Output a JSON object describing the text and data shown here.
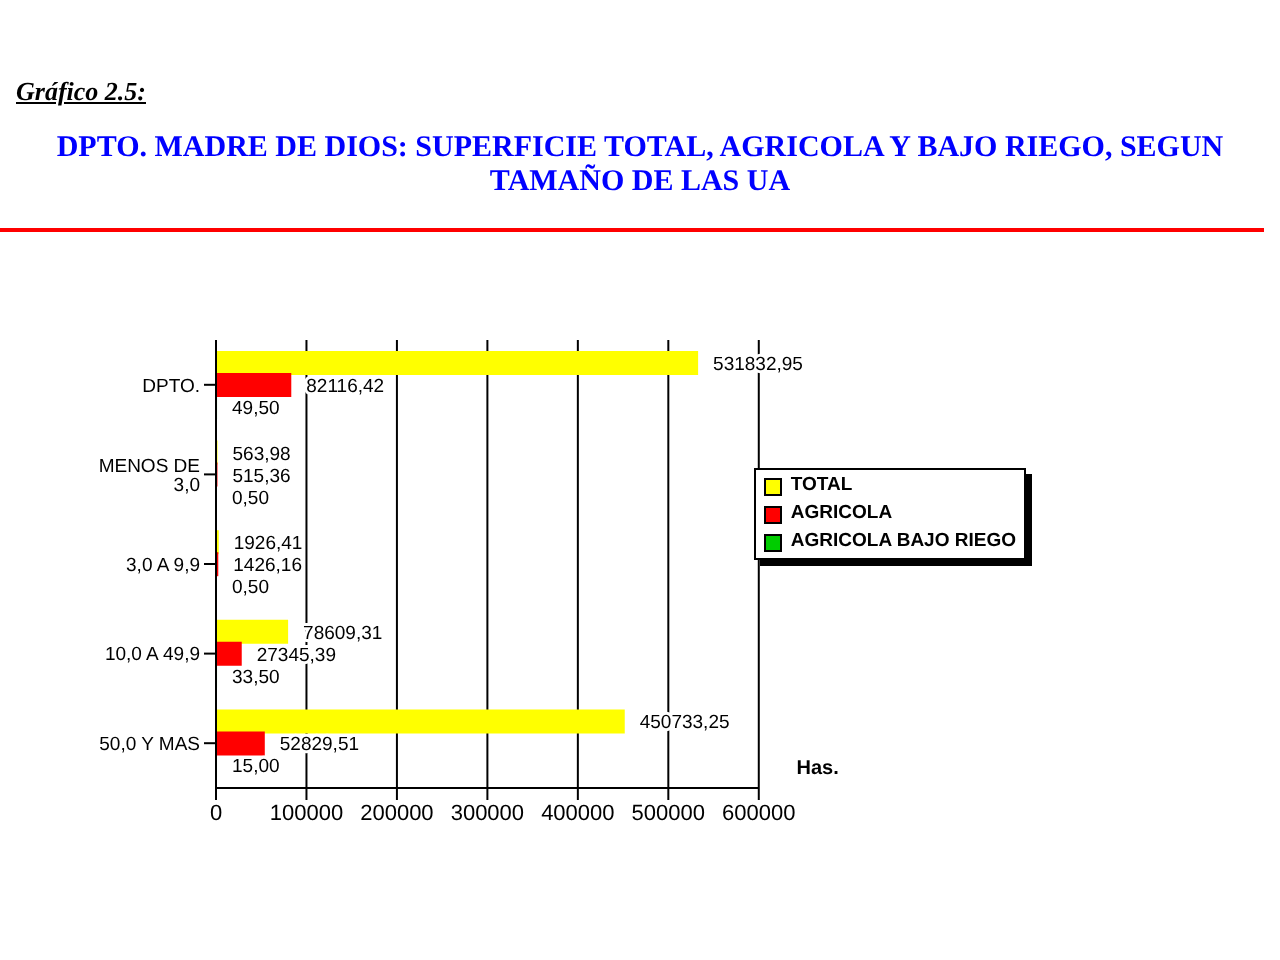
{
  "chart_data": {
    "type": "bar",
    "orientation": "horizontal",
    "title": "Gráfico 2.5:",
    "subtitle": "DPTO. MADRE DE DIOS: SUPERFICIE TOTAL, AGRICOLA Y BAJO RIEGO, SEGUN TAMAÑO DE LAS UA",
    "xlabel": "Has.",
    "categories": [
      "DPTO.",
      "MENOS DE 3,0",
      "3,0 A 9,9",
      "10,0 A 49,9",
      "50,0 Y MAS"
    ],
    "series": [
      {
        "name": "TOTAL",
        "color": "#ffff00",
        "values": [
          531832.95,
          563.98,
          1926.41,
          78609.31,
          450733.25
        ],
        "value_labels": [
          "531832,95",
          "563,98",
          "1926,41",
          "78609,31",
          "450733,25"
        ]
      },
      {
        "name": "AGRICOLA",
        "color": "#ff0000",
        "values": [
          82116.42,
          515.36,
          1426.16,
          27345.39,
          52829.51
        ],
        "value_labels": [
          "82116,42",
          "515,36",
          "1426,16",
          "27345,39",
          "52829,51"
        ]
      },
      {
        "name": "AGRICOLA BAJO RIEGO",
        "color": "#00cc00",
        "values": [
          49.5,
          0.5,
          0.5,
          33.5,
          15.0
        ],
        "value_labels": [
          "49,50",
          "0,50",
          "0,50",
          "33,50",
          "15,00"
        ]
      }
    ],
    "xlim": [
      0,
      600000
    ],
    "xticks": [
      0,
      100000,
      200000,
      300000,
      400000,
      500000,
      600000
    ],
    "grid": "x",
    "legend": "right"
  }
}
